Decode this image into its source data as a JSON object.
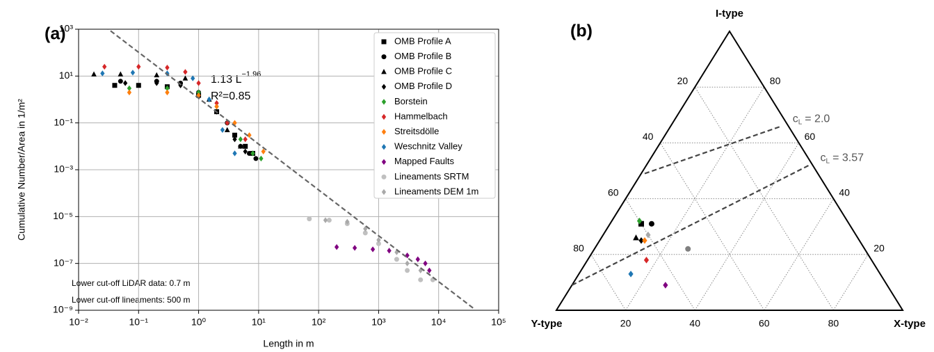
{
  "chart_data": [
    {
      "type": "scatter",
      "panel_label": "(a)",
      "x_label": "Length in m",
      "y_label": "Cumulative Number/Area in 1/m²",
      "log_x": true,
      "log_y": true,
      "grid": true,
      "legend": "upper right",
      "xlim": [
        0.01,
        100000
      ],
      "ylim": [
        1e-09,
        1000
      ],
      "xticks": [
        {
          "value": 0.01,
          "label": "10⁻²"
        },
        {
          "value": 0.1,
          "label": "10⁻¹"
        },
        {
          "value": 1,
          "label": "10⁰"
        },
        {
          "value": 10,
          "label": "10¹"
        },
        {
          "value": 100,
          "label": "10²"
        },
        {
          "value": 1000,
          "label": "10³"
        },
        {
          "value": 10000,
          "label": "10⁴"
        },
        {
          "value": 100000,
          "label": "10⁵"
        }
      ],
      "yticks": [
        {
          "value": 1e-09,
          "label": "10⁻⁹"
        },
        {
          "value": 1e-07,
          "label": "10⁻⁷"
        },
        {
          "value": 1e-05,
          "label": "10⁻⁵"
        },
        {
          "value": 0.001,
          "label": "10⁻³"
        },
        {
          "value": 0.1,
          "label": "10⁻¹"
        },
        {
          "value": 10,
          "label": "10¹"
        },
        {
          "value": 1000,
          "label": "10³"
        }
      ],
      "fit": {
        "label": "1.13 L",
        "exponent": "−1.96",
        "r2_label": "R²=0.85",
        "x": [
          0.027,
          40000
        ],
        "y": [
          1340,
          1.1e-09
        ],
        "color": "#666666"
      },
      "annotations": [
        "Lower cut-off LiDAR data: 0.7 m",
        "Lower cut-off lineaments: 500 m"
      ],
      "series": [
        {
          "name": "OMB Profile A",
          "color": "#000000",
          "marker": "square",
          "x": [
            0.04,
            0.1,
            0.3,
            1,
            2,
            4,
            6,
            8
          ],
          "y": [
            4,
            4,
            3.5,
            1.5,
            0.3,
            0.03,
            0.01,
            0.005
          ]
        },
        {
          "name": "OMB Profile B",
          "color": "#000000",
          "marker": "circle",
          "x": [
            0.05,
            0.2,
            0.5,
            1,
            3,
            5,
            7,
            9
          ],
          "y": [
            6,
            6,
            5,
            2,
            0.1,
            0.01,
            0.005,
            0.003
          ]
        },
        {
          "name": "OMB Profile C",
          "color": "#000000",
          "marker": "triangle",
          "x": [
            0.018,
            0.05,
            0.2,
            0.6,
            1.5,
            3,
            5
          ],
          "y": [
            12,
            12,
            11,
            8,
            1,
            0.05,
            0.01
          ]
        },
        {
          "name": "OMB Profile D",
          "color": "#000000",
          "marker": "diamond",
          "x": [
            0.06,
            0.2,
            0.5,
            1,
            2,
            4,
            6
          ],
          "y": [
            5,
            5,
            4,
            2,
            0.3,
            0.02,
            0.006
          ]
        },
        {
          "name": "Borstein",
          "color": "#2ca02c",
          "marker": "diamond",
          "x": [
            0.07,
            0.3,
            1,
            2,
            3,
            5,
            8,
            11
          ],
          "y": [
            3,
            3,
            2,
            0.5,
            0.1,
            0.02,
            0.005,
            0.003
          ]
        },
        {
          "name": "Hammelbach",
          "color": "#d62728",
          "marker": "diamond",
          "x": [
            0.027,
            0.1,
            0.3,
            0.6,
            1,
            2,
            3,
            6
          ],
          "y": [
            25,
            25,
            23,
            15,
            5,
            0.7,
            0.1,
            0.02
          ]
        },
        {
          "name": "Streitsdölle",
          "color": "#ff7f0e",
          "marker": "diamond",
          "x": [
            0.07,
            0.3,
            1,
            2,
            4,
            7,
            12
          ],
          "y": [
            2,
            2,
            1.5,
            0.5,
            0.1,
            0.03,
            0.006
          ]
        },
        {
          "name": "Weschnitz Valley",
          "color": "#1f77b4",
          "marker": "diamond",
          "x": [
            0.025,
            0.08,
            0.3,
            0.8,
            1.5,
            2.5,
            4
          ],
          "y": [
            13,
            14,
            13,
            8,
            1,
            0.05,
            0.005
          ]
        },
        {
          "name": "Mapped Faults",
          "color": "#800080",
          "marker": "diamond",
          "x": [
            200,
            400,
            800,
            1500,
            3000,
            4500,
            6000,
            7000
          ],
          "y": [
            5e-07,
            4.6e-07,
            4e-07,
            3.5e-07,
            2.2e-07,
            1.5e-07,
            1e-07,
            5e-08
          ]
        },
        {
          "name": "Lineaments SRTM",
          "color": "#c0c0c0",
          "marker": "circle",
          "x": [
            70,
            150,
            300,
            600,
            1000,
            2000,
            3000,
            5000,
            8000
          ],
          "y": [
            8e-06,
            7e-06,
            5e-06,
            2e-06,
            7e-07,
            1.5e-07,
            5e-08,
            2e-08,
            2e-08
          ]
        },
        {
          "name": "Lineaments DEM 1m",
          "color": "#a9a9a9",
          "marker": "diamond",
          "x": [
            130,
            300,
            600,
            1000,
            2000,
            3000,
            5000
          ],
          "y": [
            7e-06,
            6e-06,
            3e-06,
            1e-06,
            3e-07,
            1e-07,
            5e-08
          ]
        }
      ]
    },
    {
      "type": "ternary",
      "panel_label": "(b)",
      "vertices": {
        "top": "I-type",
        "left": "Y-type",
        "right": "X-type"
      },
      "ticks": [
        20,
        40,
        60,
        80
      ],
      "grid": true,
      "points": [
        {
          "I": 31,
          "X": 9,
          "Y": 60,
          "color": "#000000",
          "marker": "square"
        },
        {
          "I": 32,
          "X": 8,
          "Y": 60,
          "color": "#2ca02c",
          "marker": "diamond"
        },
        {
          "I": 31,
          "X": 12,
          "Y": 57,
          "color": "#000000",
          "marker": "circle"
        },
        {
          "I": 26,
          "X": 10,
          "Y": 64,
          "color": "#000000",
          "marker": "triangle"
        },
        {
          "I": 25,
          "X": 12,
          "Y": 63,
          "color": "#000000",
          "marker": "diamond"
        },
        {
          "I": 25,
          "X": 13,
          "Y": 62,
          "color": "#ff7f0e",
          "marker": "diamond"
        },
        {
          "I": 27,
          "X": 13,
          "Y": 60,
          "color": "#a9a9a9",
          "marker": "diamond"
        },
        {
          "I": 22,
          "X": 27,
          "Y": 51,
          "color": "#808080",
          "marker": "circle"
        },
        {
          "I": 18,
          "X": 17,
          "Y": 65,
          "color": "#d62728",
          "marker": "diamond"
        },
        {
          "I": 13,
          "X": 15,
          "Y": 72,
          "color": "#1f77b4",
          "marker": "diamond"
        },
        {
          "I": 9,
          "X": 27,
          "Y": 64,
          "color": "#800080",
          "marker": "diamond"
        }
      ],
      "lines": [
        {
          "from": {
            "I": 49,
            "X": 1
          },
          "to": {
            "I": 66,
            "X": 32
          },
          "label": "c",
          "label_sub": "L",
          "label_value": "= 2.0"
        },
        {
          "from": {
            "I": 9,
            "X": 0
          },
          "to": {
            "I": 52,
            "X": 47
          },
          "label": "c",
          "label_sub": "L",
          "label_value": "= 3.57"
        }
      ]
    }
  ]
}
